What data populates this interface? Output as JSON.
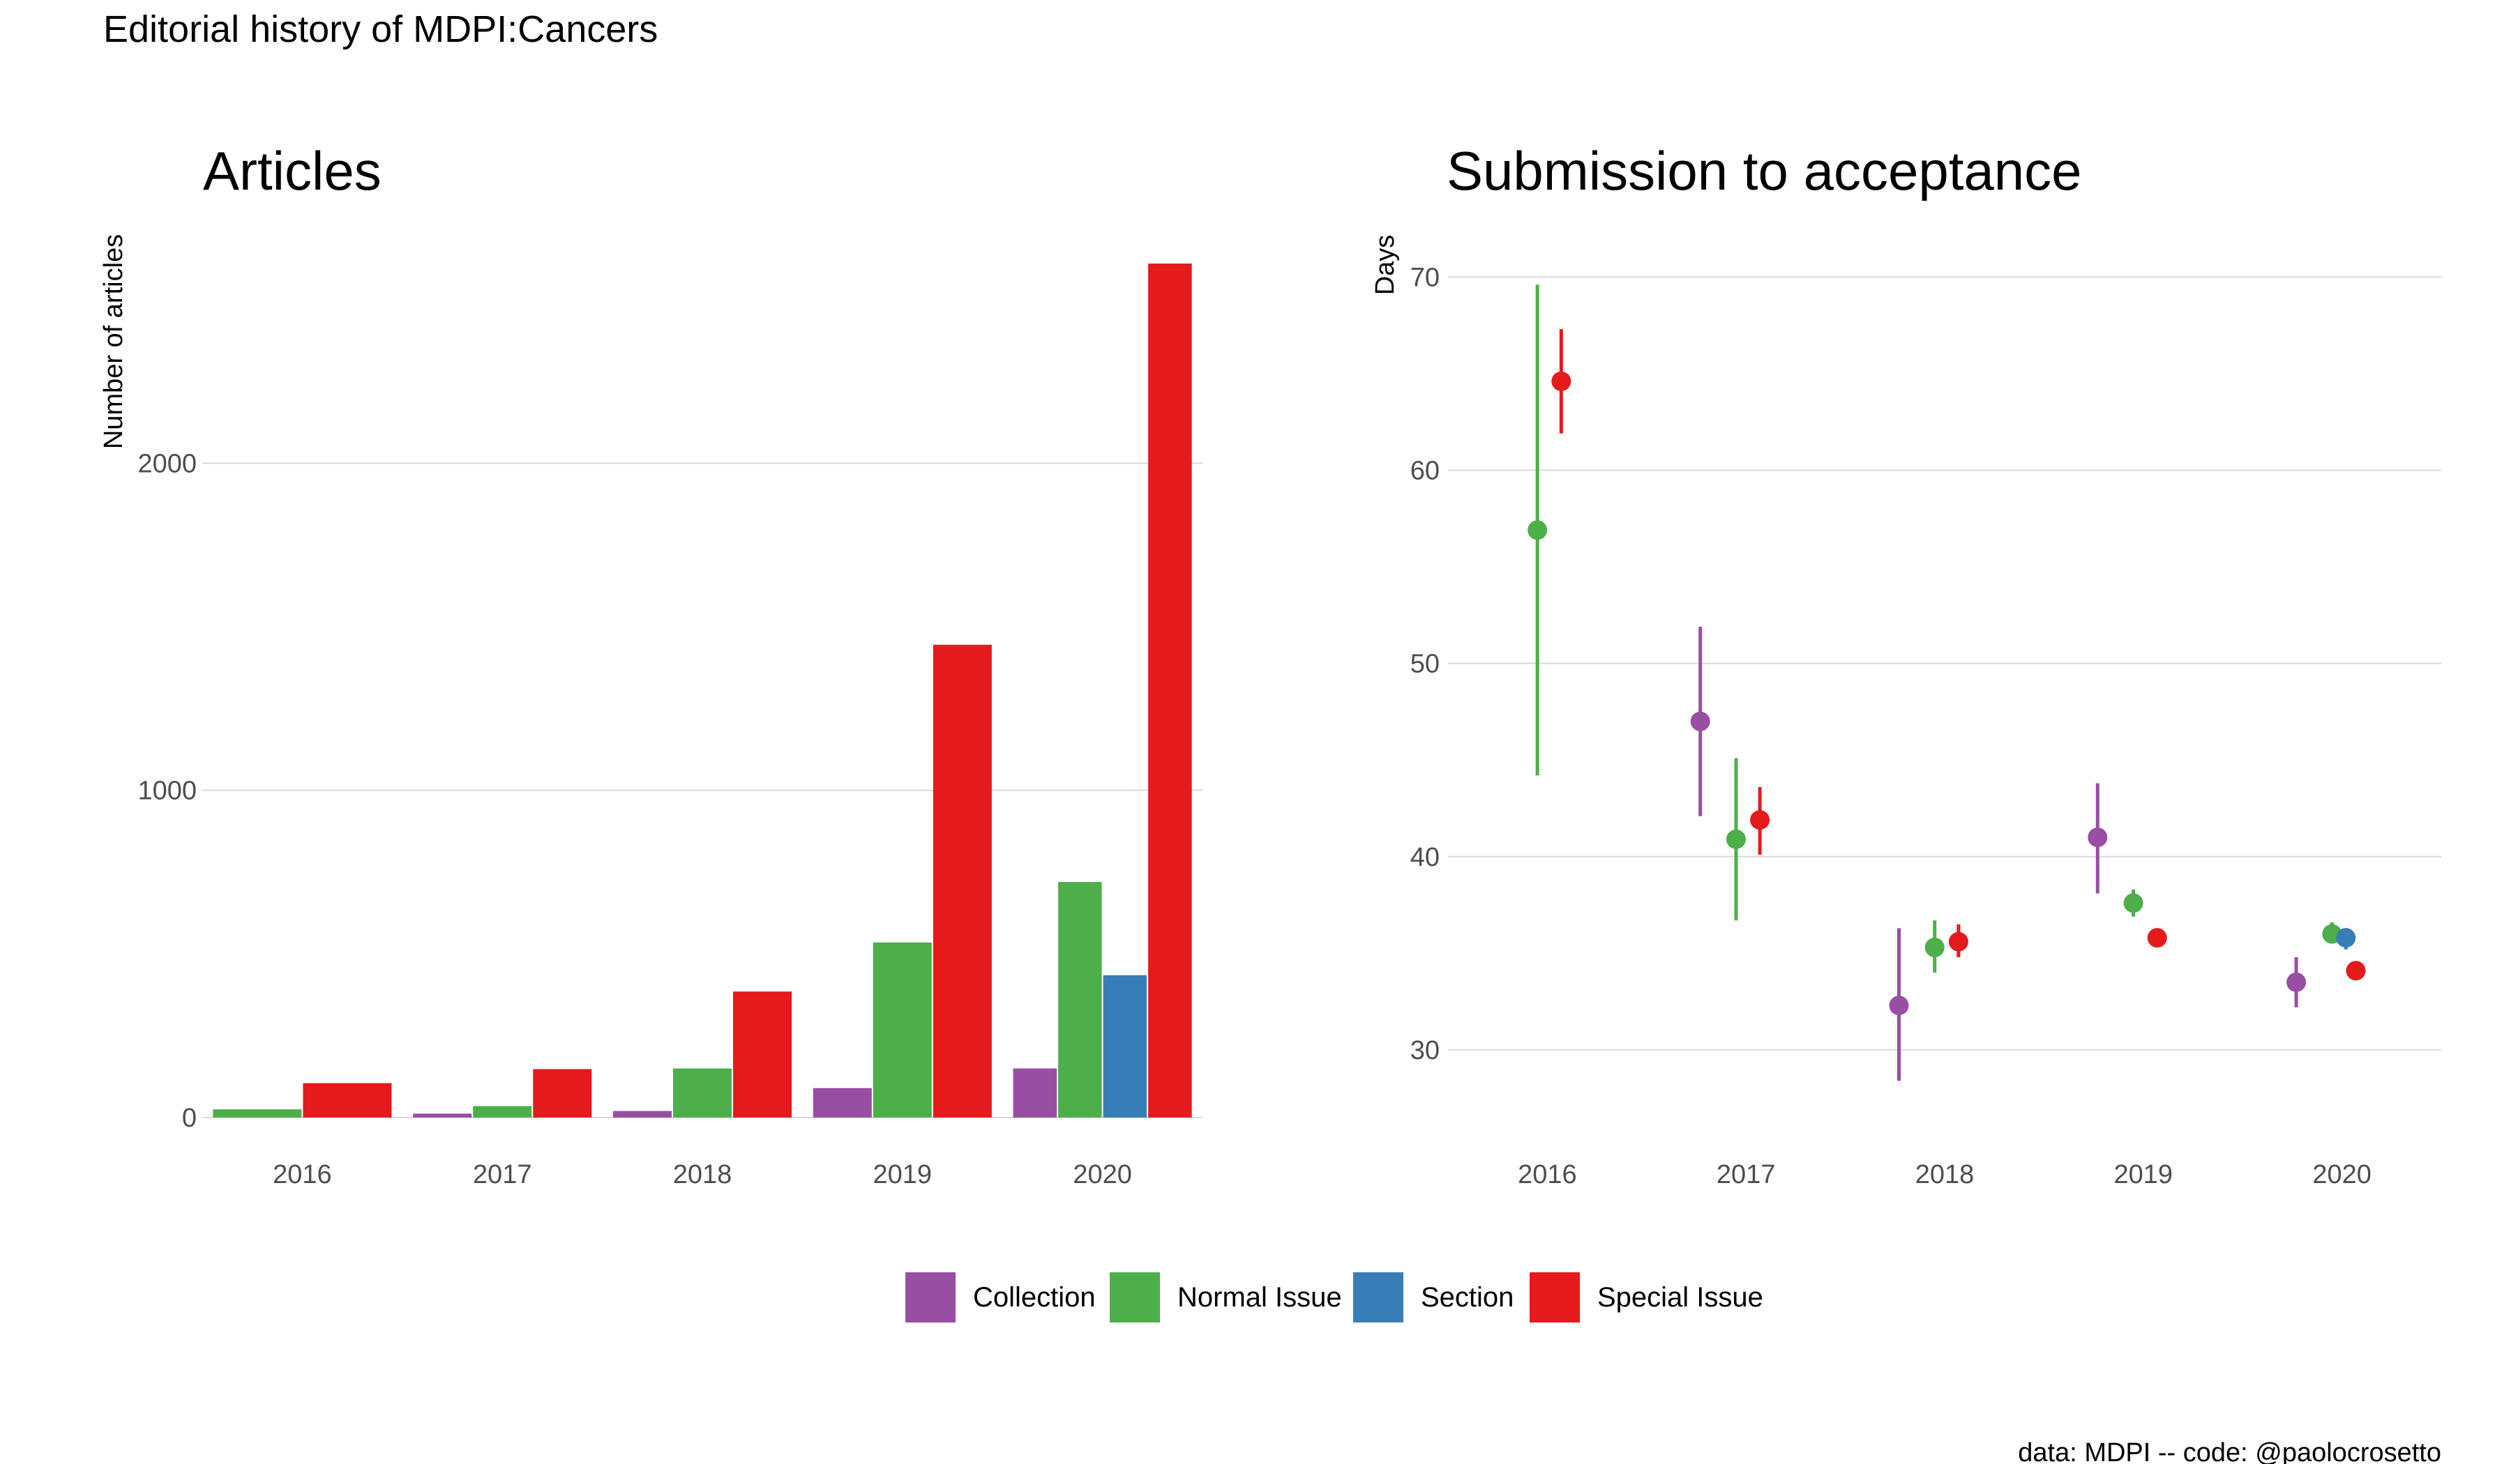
{
  "figure": {
    "title": "Editorial history of MDPI:Cancers",
    "caption": "data: MDPI -- code: @paolocrosetto"
  },
  "legend": {
    "items": [
      {
        "label": "Collection",
        "color": "#984EA3"
      },
      {
        "label": "Normal Issue",
        "color": "#4DAF4A"
      },
      {
        "label": "Section",
        "color": "#377EB8"
      },
      {
        "label": "Special Issue",
        "color": "#E41A1C"
      }
    ]
  },
  "chart_data": [
    {
      "type": "bar",
      "title": "Articles",
      "xlabel": "",
      "ylabel": "Number of articles",
      "categories": [
        "2016",
        "2017",
        "2018",
        "2019",
        "2020"
      ],
      "ylim": [
        0,
        2640
      ],
      "yticks": [
        0,
        1000,
        2000
      ],
      "ytick_labels": [
        "0",
        "1000",
        "2000"
      ],
      "series": [
        {
          "name": "Collection",
          "color": "#984EA3",
          "values": [
            null,
            12,
            20,
            90,
            150
          ]
        },
        {
          "name": "Normal Issue",
          "color": "#4DAF4A",
          "values": [
            25,
            35,
            150,
            535,
            720
          ]
        },
        {
          "name": "Section",
          "color": "#377EB8",
          "values": [
            null,
            null,
            null,
            null,
            435
          ]
        },
        {
          "name": "Special Issue",
          "color": "#E41A1C",
          "values": [
            105,
            148,
            385,
            1445,
            2610
          ]
        }
      ]
    },
    {
      "type": "scatter",
      "title": "Submission to acceptance",
      "xlabel": "",
      "ylabel": "Days",
      "categories": [
        "2016",
        "2017",
        "2018",
        "2019",
        "2020"
      ],
      "ylim": [
        26.5,
        71.2
      ],
      "yticks": [
        30,
        40,
        50,
        60,
        70
      ],
      "ytick_labels": [
        "30",
        "40",
        "50",
        "60",
        "70"
      ],
      "series": [
        {
          "name": "Collection",
          "color": "#984EA3",
          "offset": -0.23,
          "values": [
            null,
            47.0,
            32.3,
            41.0,
            33.5
          ],
          "low": [
            null,
            42.1,
            28.4,
            38.1,
            32.2
          ],
          "high": [
            null,
            51.9,
            36.3,
            43.8,
            34.8
          ]
        },
        {
          "name": "Normal Issue",
          "color": "#4DAF4A",
          "offset": -0.05,
          "values": [
            56.9,
            40.9,
            35.3,
            37.6,
            36.0
          ],
          "low": [
            44.2,
            36.7,
            34.0,
            36.9,
            35.5
          ],
          "high": [
            69.6,
            45.1,
            36.7,
            38.3,
            36.6
          ]
        },
        {
          "name": "Section",
          "color": "#377EB8",
          "offset": 0.02,
          "values": [
            null,
            null,
            null,
            null,
            35.8
          ],
          "low": [
            null,
            null,
            null,
            null,
            35.2
          ],
          "high": [
            null,
            null,
            null,
            null,
            36.3
          ]
        },
        {
          "name": "Special Issue",
          "color": "#E41A1C",
          "offset": 0.07,
          "values": [
            64.6,
            41.9,
            35.6,
            35.8,
            34.1
          ],
          "low": [
            61.9,
            40.1,
            34.8,
            35.8,
            34.1
          ],
          "high": [
            67.3,
            43.6,
            36.5,
            35.8,
            34.1
          ]
        }
      ]
    }
  ]
}
